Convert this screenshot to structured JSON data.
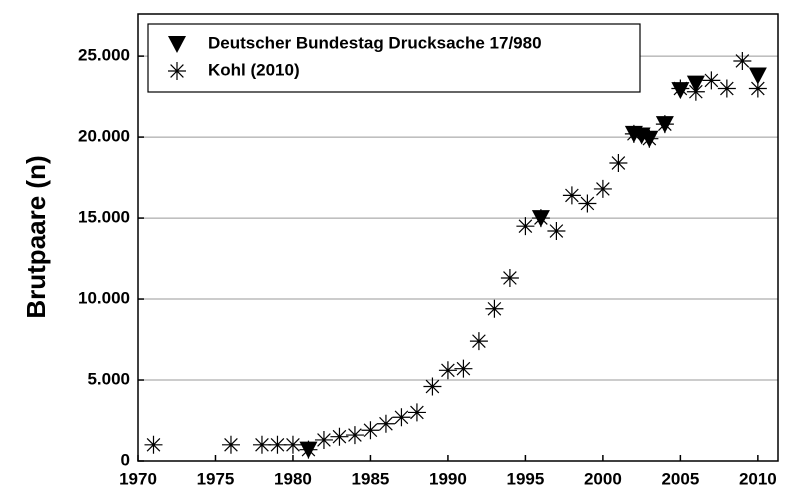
{
  "chart_data": {
    "type": "scatter",
    "y_label": "Brutpaare (n)",
    "xlim": [
      1970,
      2011.3
    ],
    "ylim": [
      0,
      27600
    ],
    "xticks": [
      1970,
      1975,
      1980,
      1985,
      1990,
      1995,
      2000,
      2005,
      2010
    ],
    "yticks": [
      0,
      {
        "value": 5000,
        "label": "5.000"
      },
      {
        "value": 10000,
        "label": "10.000"
      },
      {
        "value": 15000,
        "label": "15.000"
      },
      {
        "value": 20000,
        "label": "20.000"
      },
      {
        "value": 25000,
        "label": "25.000"
      }
    ],
    "grid": true,
    "legend": "upper left",
    "series": [
      {
        "name": "Deutscher Bundestag Drucksache 17/980",
        "marker": "triangle",
        "color": "#000000",
        "x": [
          1981,
          1996,
          2002,
          2002.5,
          2003,
          2004,
          2005,
          2006,
          2010
        ],
        "values": [
          700,
          15000,
          20200,
          20100,
          19900,
          20800,
          22900,
          23300,
          23800
        ]
      },
      {
        "name": "Kohl (2010)",
        "marker": "asterisk",
        "color": "#000000",
        "x": [
          1971,
          1976,
          1978,
          1979,
          1980,
          1981,
          1982,
          1983,
          1984,
          1985,
          1986,
          1987,
          1988,
          1989,
          1990,
          1991,
          1992,
          1993,
          1994,
          1995,
          1996,
          1997,
          1998,
          1999,
          2000,
          2001,
          2002,
          2003,
          2004,
          2005,
          2006,
          2007,
          2008,
          2009,
          2010
        ],
        "values": [
          1000,
          1000,
          1000,
          1000,
          1000,
          700,
          1300,
          1500,
          1600,
          1900,
          2300,
          2700,
          3000,
          4600,
          5600,
          5700,
          7400,
          9400,
          11300,
          14500,
          15000,
          14200,
          16400,
          15900,
          16800,
          18400,
          20200,
          19900,
          20800,
          23000,
          22800,
          23500,
          23000,
          24700,
          23000
        ]
      }
    ]
  }
}
